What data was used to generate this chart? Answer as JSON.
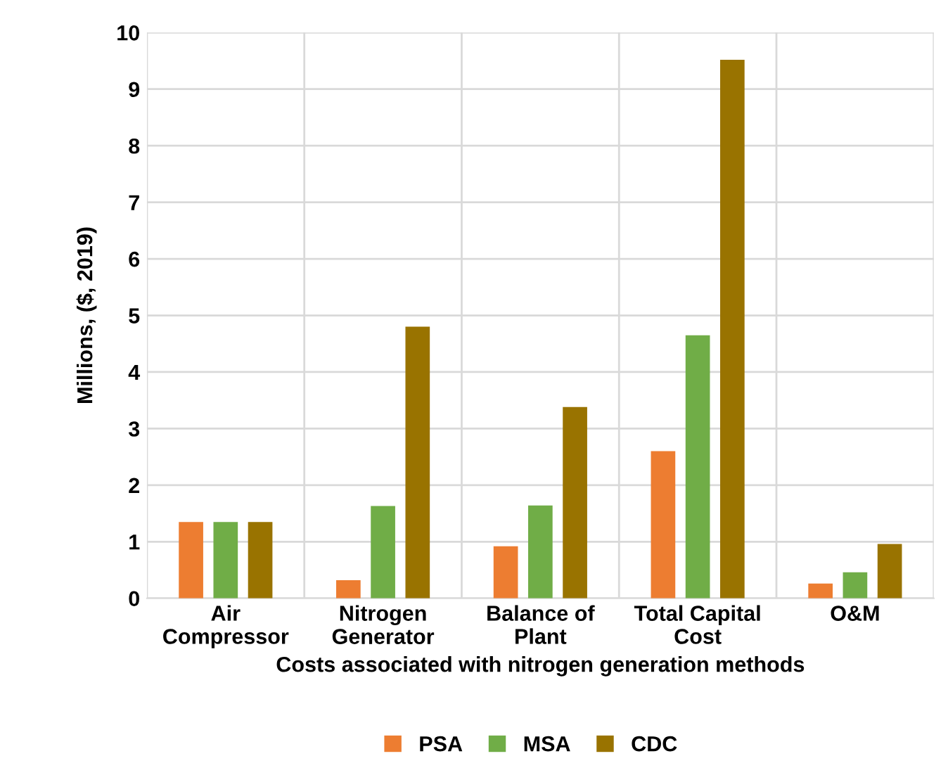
{
  "chart_data": {
    "type": "bar",
    "xlabel": "Costs associated with nitrogen generation methods",
    "ylabel": "Millions, ($, 2019)",
    "categories": [
      "Air\nCompressor",
      "Nitrogen\nGenerator",
      "Balance of\nPlant",
      "Total Capital\nCost",
      "O&M"
    ],
    "series": [
      {
        "name": "PSA",
        "color": "#ed7d31",
        "values": [
          1.35,
          0.32,
          0.92,
          2.6,
          0.26
        ]
      },
      {
        "name": "MSA",
        "color": "#70ad47",
        "values": [
          1.35,
          1.63,
          1.64,
          4.65,
          0.46
        ]
      },
      {
        "name": "CDC",
        "color": "#997300",
        "values": [
          1.35,
          4.8,
          3.38,
          9.52,
          0.96
        ]
      }
    ],
    "ylim": [
      0,
      10
    ],
    "yticks": [
      0,
      1,
      2,
      3,
      4,
      5,
      6,
      7,
      8,
      9,
      10
    ],
    "grid": true,
    "legend": "bottom"
  }
}
